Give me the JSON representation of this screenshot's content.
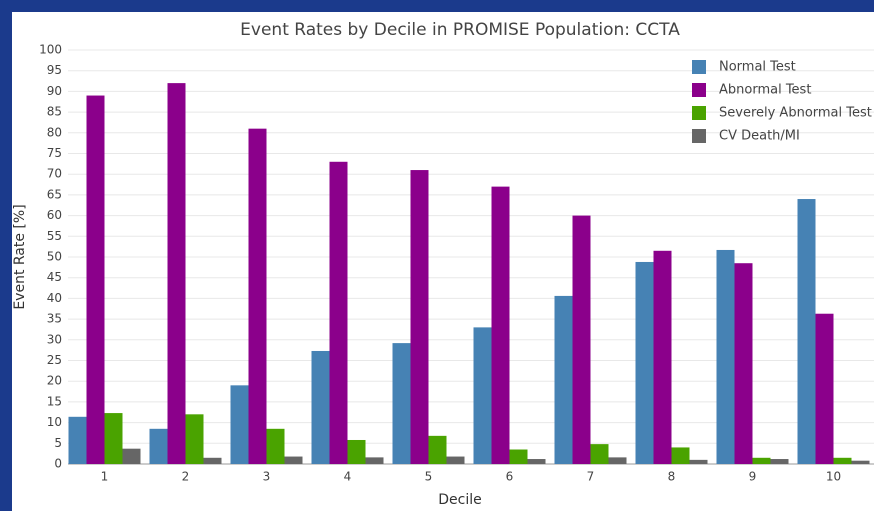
{
  "chart_data": {
    "type": "bar",
    "title": "Event Rates by Decile in PROMISE Population: CCTA",
    "x_label": "Decile",
    "y_label": "Event Rate [%]",
    "categories": [
      "1",
      "2",
      "3",
      "4",
      "5",
      "6",
      "7",
      "8",
      "9",
      "10"
    ],
    "series": [
      {
        "name": "Normal Test",
        "color": "#4682b4",
        "values": [
          11.4,
          8.5,
          19,
          27.3,
          29.2,
          33,
          40.6,
          48.8,
          51.7,
          64
        ]
      },
      {
        "name": "Abnormal Test",
        "color": "#8b008b",
        "values": [
          89,
          92,
          81,
          73,
          71,
          67,
          60,
          51.5,
          48.5,
          36.3
        ]
      },
      {
        "name": "Severely Abnormal Test",
        "color": "#4aa300",
        "values": [
          12.3,
          12,
          8.5,
          5.8,
          6.8,
          3.5,
          4.8,
          4,
          1.5,
          1.5
        ]
      },
      {
        "name": "CV Death/MI",
        "color": "#666666",
        "values": [
          3.7,
          1.5,
          1.8,
          1.6,
          1.8,
          1.2,
          1.6,
          1,
          1.2,
          0.8
        ]
      }
    ],
    "ylim": [
      0,
      100
    ],
    "yticks": [
      0,
      5,
      10,
      15,
      20,
      25,
      30,
      35,
      40,
      45,
      50,
      55,
      60,
      65,
      70,
      75,
      80,
      85,
      90,
      95,
      100
    ],
    "grid": true,
    "legend": "top-right"
  }
}
